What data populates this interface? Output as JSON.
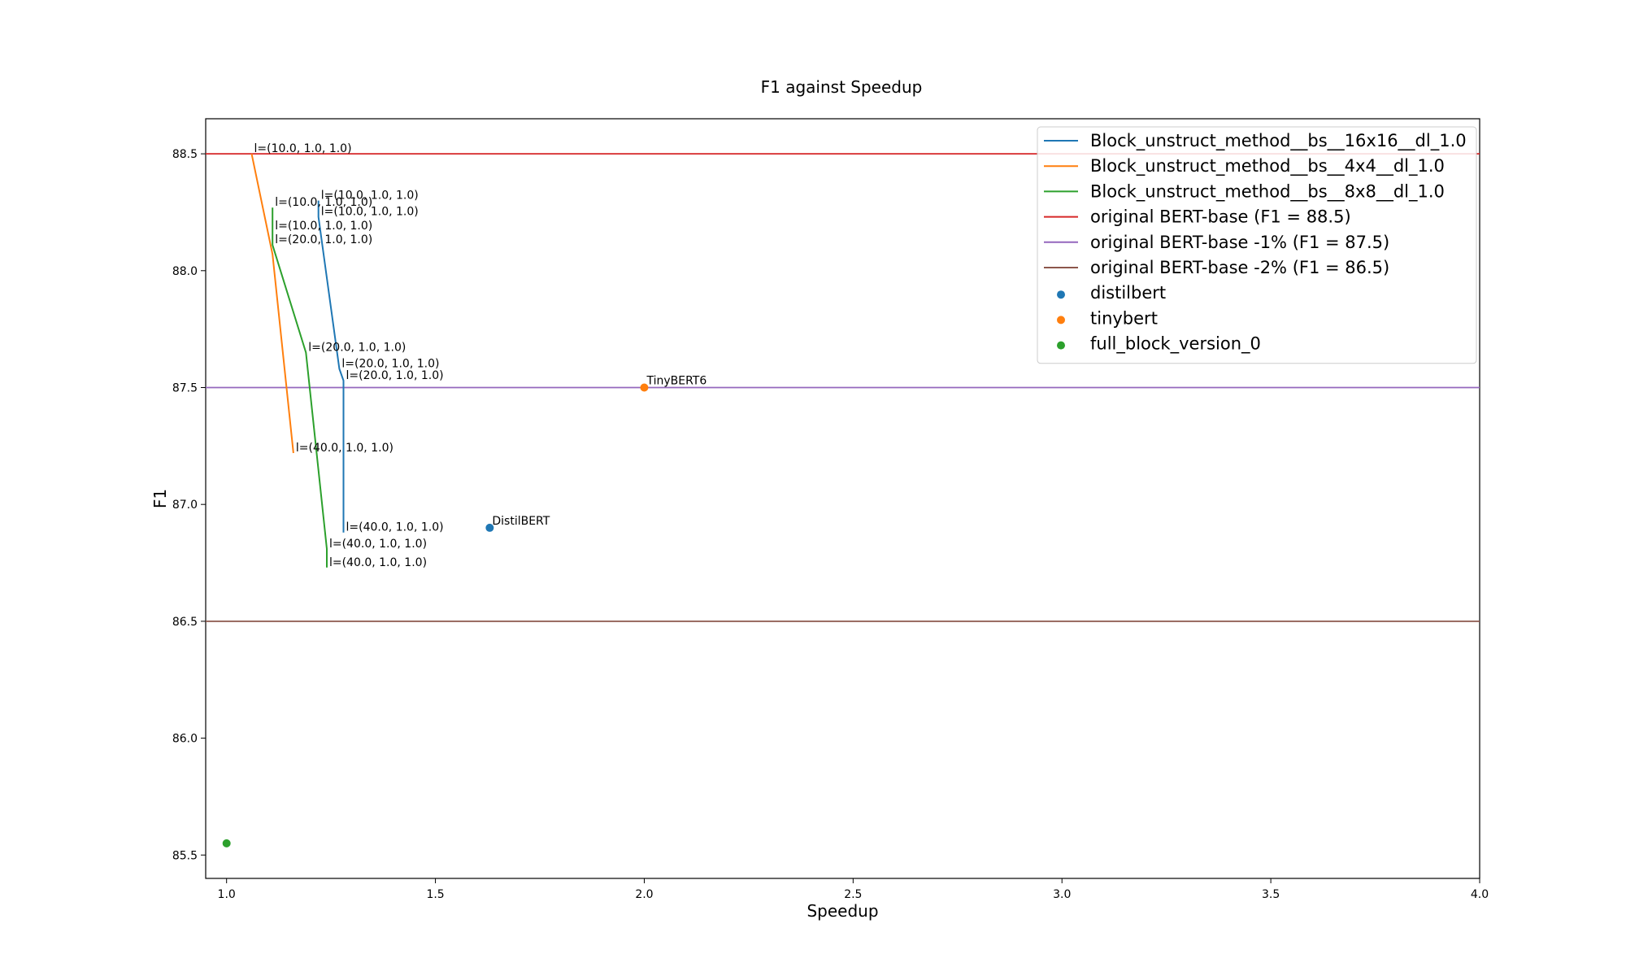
{
  "chart_data": {
    "type": "line",
    "title": "F1 against Speedup",
    "xlabel": "Speedup",
    "ylabel": "F1",
    "xlim": [
      0.95,
      4.0
    ],
    "ylim": [
      85.4,
      88.65
    ],
    "xticks": [
      {
        "value": 1.0,
        "label": "1.0"
      },
      {
        "value": 1.5,
        "label": "1.5"
      },
      {
        "value": 2.0,
        "label": "2.0"
      },
      {
        "value": 2.5,
        "label": "2.5"
      },
      {
        "value": 3.0,
        "label": "3.0"
      },
      {
        "value": 3.5,
        "label": "3.5"
      },
      {
        "value": 4.0,
        "label": "4.0"
      }
    ],
    "yticks": [
      {
        "value": 85.5,
        "label": "85.5"
      },
      {
        "value": 86.0,
        "label": "86.0"
      },
      {
        "value": 86.5,
        "label": "86.5"
      },
      {
        "value": 87.0,
        "label": "87.0"
      },
      {
        "value": 87.5,
        "label": "87.5"
      },
      {
        "value": 88.0,
        "label": "88.0"
      },
      {
        "value": 88.5,
        "label": "88.5"
      }
    ],
    "grid": false,
    "legend_position": "top-right",
    "series": [
      {
        "name": "Block_unstruct_method__bs__16x16__dl_1.0",
        "color": "#1f77b4",
        "points": [
          {
            "x": 1.22,
            "y": 88.3,
            "label": "l=(10.0, 1.0, 1.0)"
          },
          {
            "x": 1.22,
            "y": 88.23,
            "label": "l=(10.0, 1.0, 1.0)"
          },
          {
            "x": 1.27,
            "y": 87.58,
            "label": "l=(20.0, 1.0, 1.0)"
          },
          {
            "x": 1.28,
            "y": 87.53,
            "label": "l=(20.0, 1.0, 1.0)"
          },
          {
            "x": 1.28,
            "y": 86.88,
            "label": "l=(40.0, 1.0, 1.0)"
          }
        ]
      },
      {
        "name": "Block_unstruct_method__bs__4x4__dl_1.0",
        "color": "#ff7f0e",
        "points": [
          {
            "x": 1.06,
            "y": 88.5,
            "label": "l=(10.0, 1.0, 1.0)"
          },
          {
            "x": 1.11,
            "y": 88.07,
            "label": ""
          },
          {
            "x": 1.16,
            "y": 87.22,
            "label": "l=(40.0, 1.0, 1.0)"
          }
        ]
      },
      {
        "name": "Block_unstruct_method__bs__8x8__dl_1.0",
        "color": "#2ca02c",
        "points": [
          {
            "x": 1.11,
            "y": 88.27,
            "label": "l=(10.0, 1.0, 1.0)"
          },
          {
            "x": 1.11,
            "y": 88.17,
            "label": "l=(10.0, 1.0, 1.0)"
          },
          {
            "x": 1.11,
            "y": 88.11,
            "label": "l=(20.0, 1.0, 1.0)"
          },
          {
            "x": 1.19,
            "y": 87.65,
            "label": "l=(20.0, 1.0, 1.0)"
          },
          {
            "x": 1.24,
            "y": 86.81,
            "label": "l=(40.0, 1.0, 1.0)"
          },
          {
            "x": 1.24,
            "y": 86.73,
            "label": "l=(40.0, 1.0, 1.0)"
          }
        ]
      }
    ],
    "hlines": [
      {
        "name": "original BERT-base (F1 = 88.5)",
        "y": 88.5,
        "color": "#d62728"
      },
      {
        "name": "original BERT-base -1% (F1 = 87.5)",
        "y": 87.5,
        "color": "#9467bd"
      },
      {
        "name": "original BERT-base -2% (F1 = 86.5)",
        "y": 86.5,
        "color": "#8c564b"
      }
    ],
    "scatter": [
      {
        "name": "distilbert",
        "x": 1.63,
        "y": 86.9,
        "color": "#1f77b4",
        "label": "DistilBERT"
      },
      {
        "name": "tinybert",
        "x": 2.0,
        "y": 87.5,
        "color": "#ff7f0e",
        "label": "TinyBERT6"
      },
      {
        "name": "full_block_version_0",
        "x": 1.0,
        "y": 85.55,
        "color": "#2ca02c",
        "label": ""
      }
    ]
  }
}
